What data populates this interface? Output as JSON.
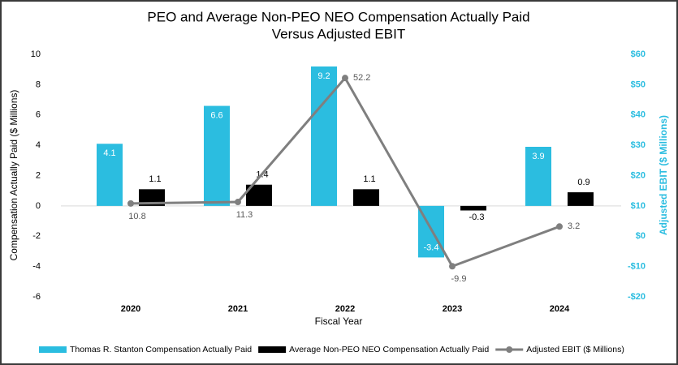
{
  "chart_data": {
    "type": "bar-line",
    "title": "PEO and Average Non-PEO NEO Compensation Actually Paid",
    "subtitle": "Versus Adjusted EBIT",
    "x_label": "Fiscal Year",
    "y_label": "Compensation Actually Paid ($ Millions)",
    "y2_label": "Adjusted EBIT ($ Millions)",
    "categories": [
      "2020",
      "2021",
      "2022",
      "2023",
      "2024"
    ],
    "series": [
      {
        "name": "Thomas R. Stanton Compensation Actually Paid",
        "color": "#2bbde0",
        "kind": "bar",
        "values": [
          4.1,
          6.6,
          9.2,
          -3.4,
          3.9
        ]
      },
      {
        "name": "Average Non-PEO NEO Compensation Actually Paid",
        "color": "#000000",
        "kind": "bar",
        "values": [
          1.1,
          1.4,
          1.1,
          -0.3,
          0.9
        ]
      },
      {
        "name": "Adjusted EBIT ($ Millions)",
        "color": "#7f7f7f",
        "kind": "line",
        "axis": "y2",
        "values": [
          10.8,
          11.3,
          52.2,
          -9.9,
          3.2
        ]
      }
    ],
    "ylim": [
      -6,
      10
    ],
    "yticks": [
      -6,
      -4,
      -2,
      0,
      2,
      4,
      6,
      8,
      10
    ],
    "y2lim": [
      -20,
      60
    ],
    "y2ticks": [
      {
        "value": -20,
        "label": "-$20"
      },
      {
        "value": -10,
        "label": "-$10"
      },
      {
        "value": 0,
        "label": "$0"
      },
      {
        "value": 10,
        "label": "$10"
      },
      {
        "value": 20,
        "label": "$20"
      },
      {
        "value": 30,
        "label": "$30"
      },
      {
        "value": 40,
        "label": "$40"
      },
      {
        "value": 50,
        "label": "$50"
      },
      {
        "value": 60,
        "label": "$60"
      }
    ],
    "y2_color": "#2bbde0",
    "legend": "bottom"
  }
}
